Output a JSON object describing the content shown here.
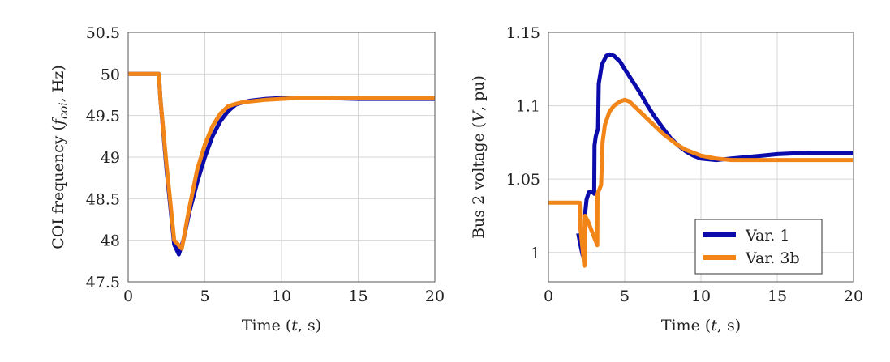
{
  "colors": {
    "var1": "#0b0bab",
    "var3b": "#f28518",
    "grid": "#d6d6d6",
    "axis": "#555555"
  },
  "chart_data": [
    {
      "type": "line",
      "title": "",
      "xlabel": "Time (t, s)",
      "xlabel_parts": [
        "Time (",
        "t",
        ", s)"
      ],
      "ylabel": "COI frequency (f_coi, Hz)",
      "ylabel_parts": [
        "COI frequency (",
        "f",
        "coi",
        ", Hz)"
      ],
      "xlim": [
        0,
        20
      ],
      "ylim": [
        47.5,
        50.5
      ],
      "xticks": [
        0,
        5,
        10,
        15,
        20
      ],
      "xtick_labels": [
        "0",
        "5",
        "10",
        "15",
        "20"
      ],
      "yticks": [
        47.5,
        48,
        48.5,
        49,
        49.5,
        50,
        50.5
      ],
      "ytick_labels": [
        "47.5",
        "48",
        "48.5",
        "49",
        "49.5",
        "50",
        "50.5"
      ],
      "grid": true,
      "legend": null,
      "series": [
        {
          "name": "Var. 1",
          "color_key": "var1",
          "x": [
            0,
            2.0,
            2.1,
            2.5,
            3.0,
            3.3,
            3.6,
            4.0,
            4.5,
            5.0,
            5.5,
            6.0,
            6.5,
            7.0,
            7.5,
            8.0,
            9.0,
            10.0,
            11.0,
            13.0,
            15.0,
            20.0
          ],
          "y": [
            50.0,
            50.0,
            49.7,
            48.85,
            47.95,
            47.83,
            48.0,
            48.35,
            48.7,
            49.0,
            49.25,
            49.43,
            49.55,
            49.63,
            49.66,
            49.68,
            49.7,
            49.71,
            49.71,
            49.71,
            49.7,
            49.7
          ]
        },
        {
          "name": "Var. 3b",
          "color_key": "var3b",
          "x": [
            0,
            2.0,
            2.1,
            2.5,
            3.0,
            3.5,
            4.0,
            4.5,
            5.0,
            5.5,
            6.0,
            6.5,
            7.0,
            7.5,
            8.0,
            9.0,
            10.0,
            11.0,
            13.0,
            15.0,
            20.0
          ],
          "y": [
            50.0,
            50.0,
            49.7,
            48.9,
            48.0,
            47.9,
            48.4,
            48.85,
            49.15,
            49.37,
            49.52,
            49.61,
            49.64,
            49.66,
            49.67,
            49.69,
            49.7,
            49.71,
            49.71,
            49.71,
            49.71
          ]
        }
      ]
    },
    {
      "type": "line",
      "title": "",
      "xlabel": "Time (t, s)",
      "xlabel_parts": [
        "Time (",
        "t",
        ", s)"
      ],
      "ylabel": "Bus 2 voltage (V, pu)",
      "ylabel_parts": [
        "Bus 2 voltage (",
        "V",
        ", pu)"
      ],
      "xlim": [
        0,
        20
      ],
      "ylim": [
        0.98,
        1.15
      ],
      "xticks": [
        0,
        5,
        10,
        15,
        20
      ],
      "xtick_labels": [
        "0",
        "5",
        "10",
        "15",
        "20"
      ],
      "yticks": [
        1.0,
        1.05,
        1.1,
        1.15
      ],
      "ytick_labels": [
        "1",
        "1.05",
        "1.1",
        "1.15"
      ],
      "grid": true,
      "legend": "bottom-right",
      "legend_entries": [
        "Var. 1",
        "Var. 3b"
      ],
      "series": [
        {
          "name": "Var. 1",
          "color_key": "var1",
          "x": [
            1.95,
            2.1,
            2.25,
            2.35,
            2.4,
            2.5,
            2.65,
            2.8,
            2.95,
            3.0,
            3.02,
            3.1,
            3.2,
            3.25,
            3.3,
            3.5,
            3.8,
            4.0,
            4.3,
            4.7,
            5.0,
            5.5,
            6.0,
            6.5,
            7.0,
            7.5,
            8.0,
            8.5,
            9.0,
            9.5,
            10.0,
            11.0,
            12.0,
            13.0,
            14.0,
            15.0,
            17.0,
            20.0
          ],
          "y": [
            1.013,
            1.005,
            0.998,
            1.01,
            1.026,
            1.036,
            1.041,
            1.041,
            1.041,
            1.04,
            1.073,
            1.079,
            1.083,
            1.084,
            1.115,
            1.128,
            1.134,
            1.135,
            1.134,
            1.13,
            1.125,
            1.117,
            1.109,
            1.1,
            1.092,
            1.085,
            1.078,
            1.073,
            1.069,
            1.066,
            1.064,
            1.063,
            1.064,
            1.065,
            1.066,
            1.067,
            1.068,
            1.068
          ]
        },
        {
          "name": "Var. 3b",
          "color_key": "var3b",
          "x": [
            0,
            2.05,
            2.1,
            2.35,
            2.38,
            2.4,
            2.6,
            2.9,
            3.2,
            3.22,
            3.3,
            3.45,
            3.55,
            3.7,
            4.0,
            4.3,
            4.7,
            5.0,
            5.3,
            5.7,
            6.0,
            6.5,
            7.0,
            7.5,
            8.0,
            8.5,
            9.0,
            9.5,
            10.0,
            11.0,
            12.0,
            13.0,
            15.0,
            17.0,
            20.0
          ],
          "y": [
            1.034,
            1.034,
            1.016,
            0.991,
            0.991,
            1.025,
            1.021,
            1.013,
            1.005,
            1.04,
            1.042,
            1.046,
            1.075,
            1.087,
            1.096,
            1.1,
            1.103,
            1.104,
            1.103,
            1.099,
            1.096,
            1.091,
            1.086,
            1.081,
            1.077,
            1.073,
            1.07,
            1.068,
            1.066,
            1.064,
            1.063,
            1.063,
            1.063,
            1.063,
            1.063
          ]
        }
      ]
    }
  ]
}
